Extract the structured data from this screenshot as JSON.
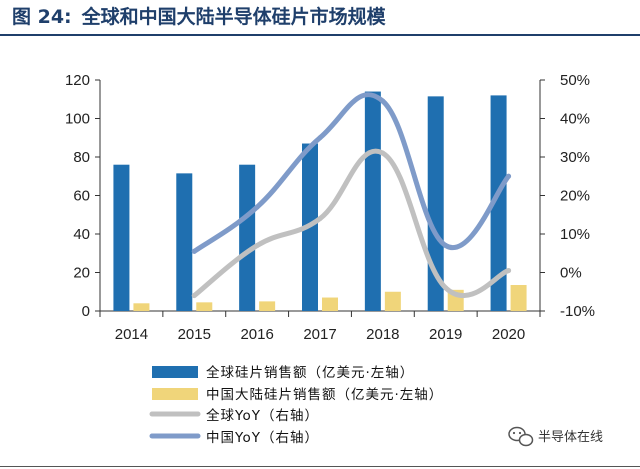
{
  "figure": {
    "number_label": "图 24:",
    "title": "全球和中国大陆半导体硅片市场规模"
  },
  "watermark": {
    "text": "半导体在线",
    "icon": "wechat-icon"
  },
  "colors": {
    "global_bar": "#1f6fb0",
    "china_bar": "#f0d57a",
    "global_yoy": "#c0c0c0",
    "china_yoy": "#7f9bc9",
    "title": "#1f3f6b"
  },
  "chart_data": {
    "type": "bar",
    "title": "全球和中国大陆半导体硅片市场规模",
    "categories": [
      "2014",
      "2015",
      "2016",
      "2017",
      "2018",
      "2019",
      "2020"
    ],
    "series": [
      {
        "name": "全球硅片销售额（亿美元·左轴）",
        "type": "bar",
        "axis": "left",
        "values": [
          76,
          71.5,
          76,
          87,
          114,
          111.5,
          112
        ]
      },
      {
        "name": "中国大陆硅片销售额（亿美元·左轴）",
        "type": "bar",
        "axis": "left",
        "values": [
          4,
          4.5,
          5,
          7,
          10,
          11,
          13.5
        ]
      },
      {
        "name": "全球YoY（右轴）",
        "type": "line",
        "axis": "right",
        "values": [
          null,
          -6,
          7,
          14,
          31,
          -4,
          0.5
        ]
      },
      {
        "name": "中国YoY（右轴）",
        "type": "line",
        "axis": "right",
        "values": [
          null,
          5.5,
          17,
          35,
          44.5,
          7,
          25
        ]
      }
    ],
    "y_left": {
      "min": 0,
      "max": 120,
      "step": 20,
      "ticks": [
        "0",
        "20",
        "40",
        "60",
        "80",
        "100",
        "120"
      ]
    },
    "y_right": {
      "min": -10,
      "max": 50,
      "step": 10,
      "ticks": [
        "-10%",
        "0%",
        "10%",
        "20%",
        "30%",
        "40%",
        "50%"
      ]
    },
    "grid": false,
    "legend_position": "bottom-left"
  }
}
